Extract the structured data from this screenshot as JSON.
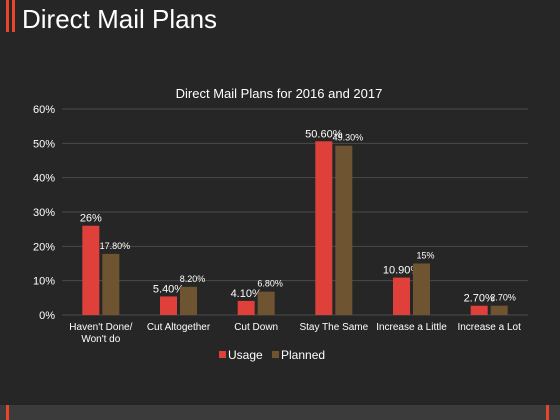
{
  "page": {
    "title": "Direct Mail Plans"
  },
  "colors": {
    "background": "#262626",
    "accent": "#e8452c",
    "usage": "#e0403a",
    "planned": "#6e5430",
    "text": "#ffffff",
    "grid": "#4a4a4a"
  },
  "chart_data": {
    "type": "bar",
    "title": "Direct Mail Plans for 2016 and 2017",
    "categories": [
      "Haven't Done/ Won't do",
      "Cut Altogether",
      "Cut Down",
      "Stay The Same",
      "Increase a Little",
      "Increase a Lot"
    ],
    "series": [
      {
        "name": "Usage",
        "values": [
          26,
          5.4,
          4.1,
          50.6,
          10.9,
          2.7
        ],
        "labels": [
          "26%",
          "5.40%",
          "4.10%",
          "50.60%",
          "10.90%",
          "2.70%"
        ]
      },
      {
        "name": "Planned",
        "values": [
          17.8,
          8.2,
          6.8,
          49.3,
          15,
          2.7
        ],
        "labels": [
          "17.80%",
          "8.20%",
          "6.80%",
          "49.30%",
          "15%",
          "2.70%"
        ]
      }
    ],
    "ylim": [
      0,
      60
    ],
    "yticks": [
      "0%",
      "10%",
      "20%",
      "30%",
      "40%",
      "50%",
      "60%"
    ],
    "grid": true,
    "legend": "bottom"
  }
}
